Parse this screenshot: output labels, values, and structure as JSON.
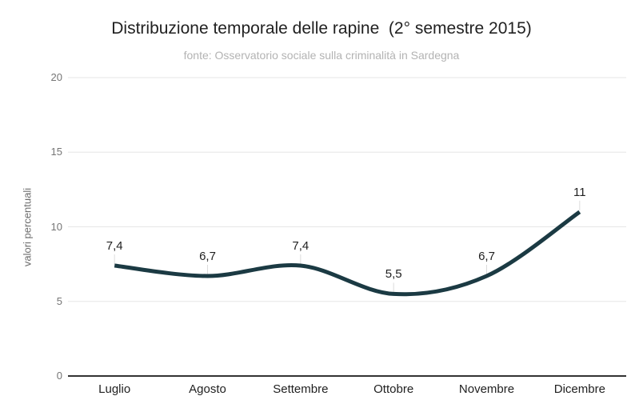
{
  "header": {
    "title": "Distribuzione temporale delle rapine  (2° semestre 2015)",
    "subtitle": "fonte: Osservatorio sociale sulla criminalità in Sardegna"
  },
  "chart_data": {
    "type": "line",
    "title": "Distribuzione temporale delle rapine  (2° semestre 2015)",
    "subtitle": "fonte: Osservatorio sociale sulla criminalità in Sardegna",
    "categories": [
      "Luglio",
      "Agosto",
      "Settembre",
      "Ottobre",
      "Novembre",
      "Dicembre"
    ],
    "values": [
      7.4,
      6.7,
      7.4,
      5.5,
      6.7,
      11
    ],
    "value_labels": [
      "7,4",
      "6,7",
      "7,4",
      "5,5",
      "6,7",
      "11"
    ],
    "xlabel": "",
    "ylabel": "valori percentuali",
    "ylim": [
      0,
      20
    ],
    "yticks": [
      0,
      5,
      10,
      15,
      20
    ],
    "ytick_labels": [
      "0",
      "5",
      "10",
      "15",
      "20"
    ],
    "grid": true,
    "legend": "none",
    "curve": "smooth",
    "line_color": "#1b3a43",
    "gridline_color": "#e6e6e6",
    "axis_line_color": "#333333",
    "label_tick_color": "#dcdcdc"
  }
}
